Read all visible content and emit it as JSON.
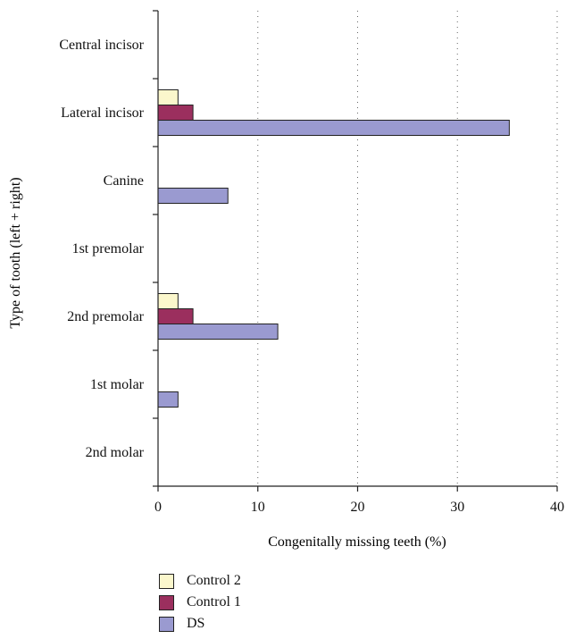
{
  "chart_data": {
    "type": "bar",
    "orientation": "horizontal",
    "categories": [
      "Central incisor",
      "Lateral incisor",
      "Canine",
      "1st premolar",
      "2nd premolar",
      "1st molar",
      "2nd molar"
    ],
    "series": [
      {
        "name": "Control 2",
        "values": [
          0,
          2,
          0,
          0,
          2,
          0,
          0
        ],
        "color": "#fbf7cc"
      },
      {
        "name": "Control 1",
        "values": [
          0,
          3.5,
          0,
          0,
          3.5,
          0,
          0
        ],
        "color": "#9b2f5e"
      },
      {
        "name": "DS",
        "values": [
          0,
          35.2,
          7,
          0,
          12,
          2,
          0
        ],
        "color": "#9a9ad0"
      }
    ],
    "xlabel": "Congenitally missing teeth (%)",
    "ylabel": "Type of tooth (left + right)",
    "xlim": [
      0,
      40
    ],
    "xticks": [
      0,
      10,
      20,
      30,
      40
    ],
    "grid": "vertical dotted",
    "legend_position": "bottom-left"
  }
}
